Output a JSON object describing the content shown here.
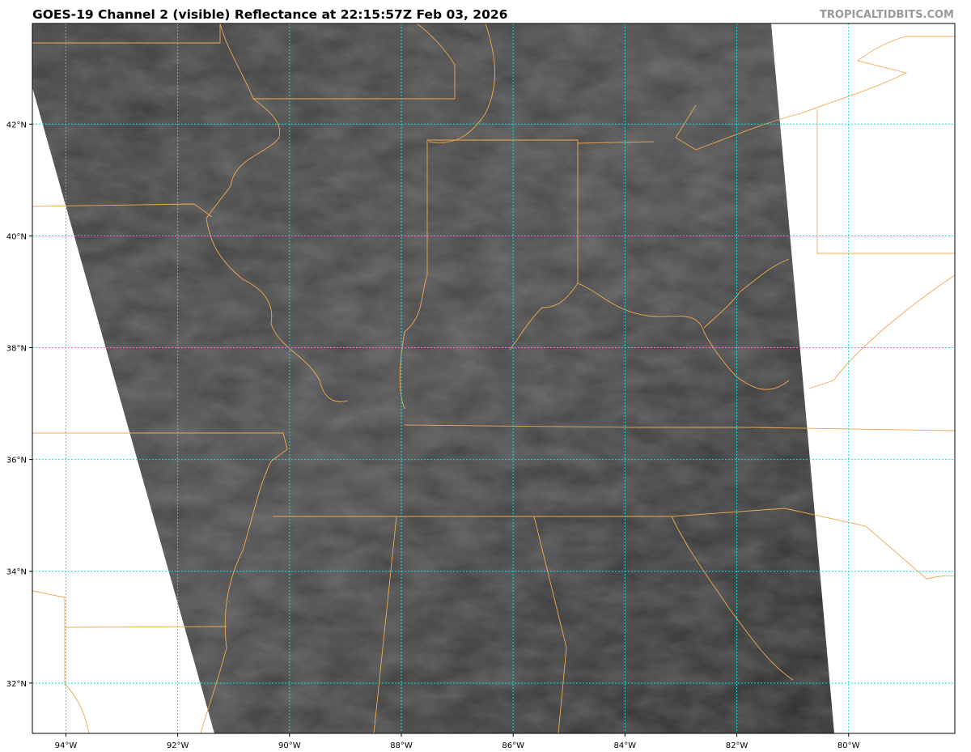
{
  "header": {
    "title": "GOES-19 Channel 2 (visible) Reflectance at 22:15:57Z Feb 03, 2026",
    "brand": "TROPICALTIDBITS.COM"
  },
  "map": {
    "product": "GOES-19 Channel 2 visible reflectance",
    "lon_ticks": [
      {
        "value": -94,
        "label": "94°W"
      },
      {
        "value": -92,
        "label": "92°W"
      },
      {
        "value": -90,
        "label": "90°W"
      },
      {
        "value": -88,
        "label": "88°W"
      },
      {
        "value": -86,
        "label": "86°W"
      },
      {
        "value": -84,
        "label": "84°W"
      },
      {
        "value": -82,
        "label": "82°W"
      },
      {
        "value": -80,
        "label": "80°W"
      }
    ],
    "lat_ticks": [
      {
        "value": 42,
        "label": "42°N"
      },
      {
        "value": 40,
        "label": "40°N"
      },
      {
        "value": 38,
        "label": "38°N"
      },
      {
        "value": 36,
        "label": "36°N"
      },
      {
        "value": 34,
        "label": "34°N"
      },
      {
        "value": 32,
        "label": "32°N"
      }
    ],
    "lon_range": [
      -94.6,
      -78.1
    ],
    "lat_range": [
      31.1,
      43.8
    ],
    "colors": {
      "gridline": "#00e5e5",
      "borders": "#f0a850",
      "imagery": "#3a3a3a"
    }
  }
}
